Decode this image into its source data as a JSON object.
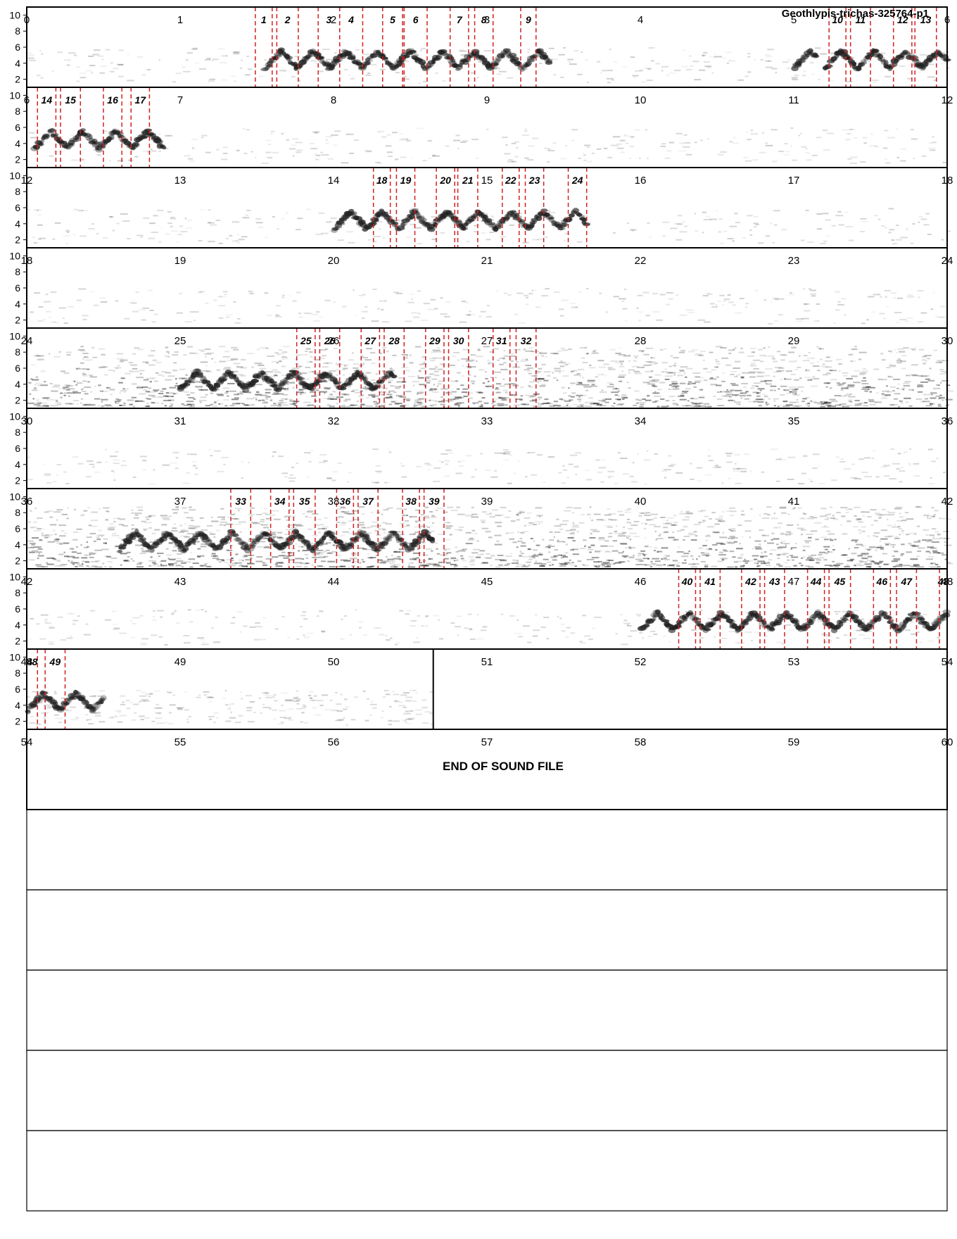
{
  "title": "Geothlypis-trichas-325764-p1",
  "end_text": "END OF SOUND FILE",
  "colors": {
    "marker": "#d42020",
    "frame": "#000000",
    "spectrogram": "#222222"
  },
  "chart_data": {
    "type": "spectrogram",
    "title": "Geothlypis-trichas-325764-p1",
    "rows": 15,
    "seconds_per_row": 6,
    "sound_end_s": 50.65,
    "ylim": [
      1,
      11
    ],
    "yticks": [
      2,
      4,
      6,
      8,
      10
    ],
    "grid": false,
    "noisy_rows": [
      4,
      6
    ],
    "song_bouts": [
      [
        1.55,
        3.4
      ],
      [
        5.0,
        5.15
      ],
      [
        5.2,
        6.0
      ],
      [
        6.05,
        6.9
      ],
      [
        14.0,
        15.65
      ],
      [
        25.0,
        26.4
      ],
      [
        36.6,
        38.65
      ],
      [
        46.0,
        48.0
      ],
      [
        48.0,
        48.5
      ]
    ],
    "syllables": [
      {
        "label": "1",
        "start": 1.49,
        "end": 1.6
      },
      {
        "label": "2",
        "start": 1.63,
        "end": 1.77
      },
      {
        "label": "3",
        "start": 1.9,
        "end": 2.04
      },
      {
        "label": "4",
        "start": 2.04,
        "end": 2.19
      },
      {
        "label": "5",
        "start": 2.32,
        "end": 2.45
      },
      {
        "label": "6",
        "start": 2.46,
        "end": 2.61
      },
      {
        "label": "7",
        "start": 2.76,
        "end": 2.88
      },
      {
        "label": "8",
        "start": 2.92,
        "end": 3.04
      },
      {
        "label": "9",
        "start": 3.22,
        "end": 3.32
      },
      {
        "label": "10",
        "start": 5.23,
        "end": 5.34
      },
      {
        "label": "11",
        "start": 5.37,
        "end": 5.5
      },
      {
        "label": "12",
        "start": 5.65,
        "end": 5.77
      },
      {
        "label": "13",
        "start": 5.79,
        "end": 5.93
      },
      {
        "label": "14",
        "start": 6.07,
        "end": 6.19
      },
      {
        "label": "15",
        "start": 6.22,
        "end": 6.35
      },
      {
        "label": "16",
        "start": 6.5,
        "end": 6.62
      },
      {
        "label": "17",
        "start": 6.68,
        "end": 6.8
      },
      {
        "label": "18",
        "start": 14.26,
        "end": 14.37
      },
      {
        "label": "19",
        "start": 14.41,
        "end": 14.53
      },
      {
        "label": "20",
        "start": 14.67,
        "end": 14.79
      },
      {
        "label": "21",
        "start": 14.81,
        "end": 14.94
      },
      {
        "label": "22",
        "start": 15.1,
        "end": 15.21
      },
      {
        "label": "23",
        "start": 15.25,
        "end": 15.37
      },
      {
        "label": "24",
        "start": 15.53,
        "end": 15.65
      },
      {
        "label": "25",
        "start": 25.76,
        "end": 25.88
      },
      {
        "label": "26",
        "start": 25.91,
        "end": 26.04
      },
      {
        "label": "27",
        "start": 26.18,
        "end": 26.3
      },
      {
        "label": "28",
        "start": 26.33,
        "end": 26.46
      },
      {
        "label": "29",
        "start": 26.6,
        "end": 26.72
      },
      {
        "label": "30",
        "start": 26.75,
        "end": 26.88
      },
      {
        "label": "31",
        "start": 27.04,
        "end": 27.15
      },
      {
        "label": "32",
        "start": 27.19,
        "end": 27.32
      },
      {
        "label": "33",
        "start": 37.33,
        "end": 37.46
      },
      {
        "label": "34",
        "start": 37.59,
        "end": 37.71
      },
      {
        "label": "35",
        "start": 37.74,
        "end": 37.88
      },
      {
        "label": "36",
        "start": 38.02,
        "end": 38.13
      },
      {
        "label": "37",
        "start": 38.16,
        "end": 38.29
      },
      {
        "label": "38",
        "start": 38.45,
        "end": 38.56
      },
      {
        "label": "39",
        "start": 38.59,
        "end": 38.72
      },
      {
        "label": "40",
        "start": 46.25,
        "end": 46.36
      },
      {
        "label": "41",
        "start": 46.39,
        "end": 46.52
      },
      {
        "label": "42",
        "start": 46.66,
        "end": 46.78
      },
      {
        "label": "43",
        "start": 46.81,
        "end": 46.94
      },
      {
        "label": "44",
        "start": 47.09,
        "end": 47.2
      },
      {
        "label": "45",
        "start": 47.23,
        "end": 47.37
      },
      {
        "label": "46",
        "start": 47.52,
        "end": 47.63
      },
      {
        "label": "47",
        "start": 47.67,
        "end": 47.8
      },
      {
        "label": "48",
        "start": 47.95,
        "end": 48.07
      },
      {
        "label": "49",
        "start": 48.12,
        "end": 48.25
      }
    ]
  }
}
